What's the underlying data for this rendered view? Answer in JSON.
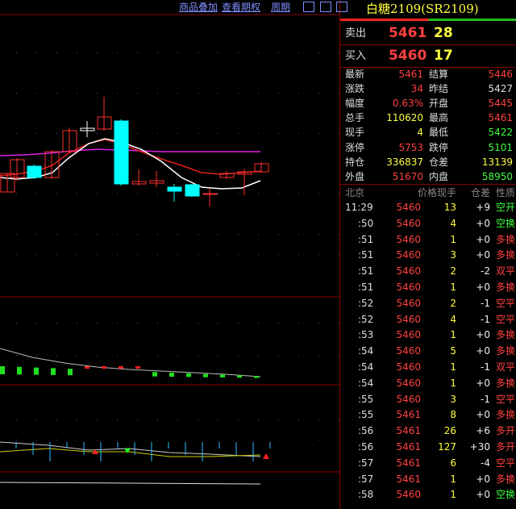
{
  "toolbar": {
    "overlay": "商品叠加",
    "options": "查看期权",
    "period": "周期"
  },
  "quote": {
    "title": "白糖2109(SR2109)",
    "ask": {
      "label": "卖出",
      "price": 5461,
      "volume": 28
    },
    "bid": {
      "label": "买入",
      "price": 5460,
      "volume": 17
    },
    "stats": [
      {
        "label": "最新",
        "value": 5461,
        "color": "#ff4040"
      },
      {
        "label": "结算",
        "value": 5446,
        "color": "#ff4040"
      },
      {
        "label": "涨跌",
        "value": 34,
        "color": "#ff4040"
      },
      {
        "label": "昨结",
        "value": 5427,
        "color": "#e0e0e0"
      },
      {
        "label": "幅度",
        "value": "0.63%",
        "color": "#ff4040"
      },
      {
        "label": "开盘",
        "value": 5445,
        "color": "#ff4040"
      },
      {
        "label": "总手",
        "value": 110620,
        "color": "#ffff40"
      },
      {
        "label": "最高",
        "value": 5461,
        "color": "#ff4040"
      },
      {
        "label": "现手",
        "value": 4,
        "color": "#ffff40"
      },
      {
        "label": "最低",
        "value": 5422,
        "color": "#40ff40"
      },
      {
        "label": "涨停",
        "value": 5753,
        "color": "#ff4040"
      },
      {
        "label": "跌停",
        "value": 5101,
        "color": "#40ff40"
      },
      {
        "label": "持仓",
        "value": 336837,
        "color": "#ffff40"
      },
      {
        "label": "仓差",
        "value": 13139,
        "color": "#ffff40"
      },
      {
        "label": "外盘",
        "value": 51670,
        "color": "#ff4040"
      },
      {
        "label": "内盘",
        "value": 58950,
        "color": "#40ff40"
      }
    ],
    "trades": {
      "headers": [
        "北京",
        "价格",
        "现手",
        "仓差",
        "性质"
      ],
      "rows": [
        {
          "time": "11:29",
          "price": 5460,
          "volume": 13,
          "change": "+9",
          "type": "空开",
          "type_color": "#40ff40"
        },
        {
          "time": ":50",
          "price": 5460,
          "volume": 4,
          "change": "+0",
          "type": "空换",
          "type_color": "#40ff40"
        },
        {
          "time": ":51",
          "price": 5460,
          "volume": 1,
          "change": "+0",
          "type": "多换",
          "type_color": "#ff4040"
        },
        {
          "time": ":51",
          "price": 5460,
          "volume": 3,
          "change": "+0",
          "type": "多换",
          "type_color": "#ff4040"
        },
        {
          "time": ":51",
          "price": 5460,
          "volume": 2,
          "change": "-2",
          "type": "双平",
          "type_color": "#ff4040"
        },
        {
          "time": ":51",
          "price": 5460,
          "volume": 1,
          "change": "+0",
          "type": "多换",
          "type_color": "#ff4040"
        },
        {
          "time": ":52",
          "price": 5460,
          "volume": 2,
          "change": "-1",
          "type": "空平",
          "type_color": "#ff4040"
        },
        {
          "time": ":52",
          "price": 5460,
          "volume": 4,
          "change": "-1",
          "type": "空平",
          "type_color": "#ff4040"
        },
        {
          "time": ":53",
          "price": 5460,
          "volume": 1,
          "change": "+0",
          "type": "多换",
          "type_color": "#ff4040"
        },
        {
          "time": ":54",
          "price": 5460,
          "volume": 5,
          "change": "+0",
          "type": "多换",
          "type_color": "#ff4040"
        },
        {
          "time": ":54",
          "price": 5460,
          "volume": 1,
          "change": "-1",
          "type": "双平",
          "type_color": "#ff4040"
        },
        {
          "time": ":54",
          "price": 5460,
          "volume": 1,
          "change": "+0",
          "type": "多换",
          "type_color": "#ff4040"
        },
        {
          "time": ":55",
          "price": 5460,
          "volume": 3,
          "change": "-1",
          "type": "空平",
          "type_color": "#ff4040"
        },
        {
          "time": ":55",
          "price": 5461,
          "volume": 8,
          "change": "+0",
          "type": "多换",
          "type_color": "#ff4040"
        },
        {
          "time": ":56",
          "price": 5461,
          "volume": 26,
          "change": "+6",
          "type": "多开",
          "type_color": "#ff4040"
        },
        {
          "time": ":56",
          "price": 5461,
          "volume": 127,
          "change": "+30",
          "type": "多开",
          "type_color": "#ff4040"
        },
        {
          "time": ":57",
          "price": 5461,
          "volume": 6,
          "change": "-4",
          "type": "空平",
          "type_color": "#ff4040"
        },
        {
          "time": ":57",
          "price": 5461,
          "volume": 1,
          "change": "+0",
          "type": "多换",
          "type_color": "#ff4040"
        },
        {
          "time": ":58",
          "price": 5460,
          "volume": 1,
          "change": "+0",
          "type": "空换",
          "type_color": "#40ff40"
        }
      ]
    }
  }
}
